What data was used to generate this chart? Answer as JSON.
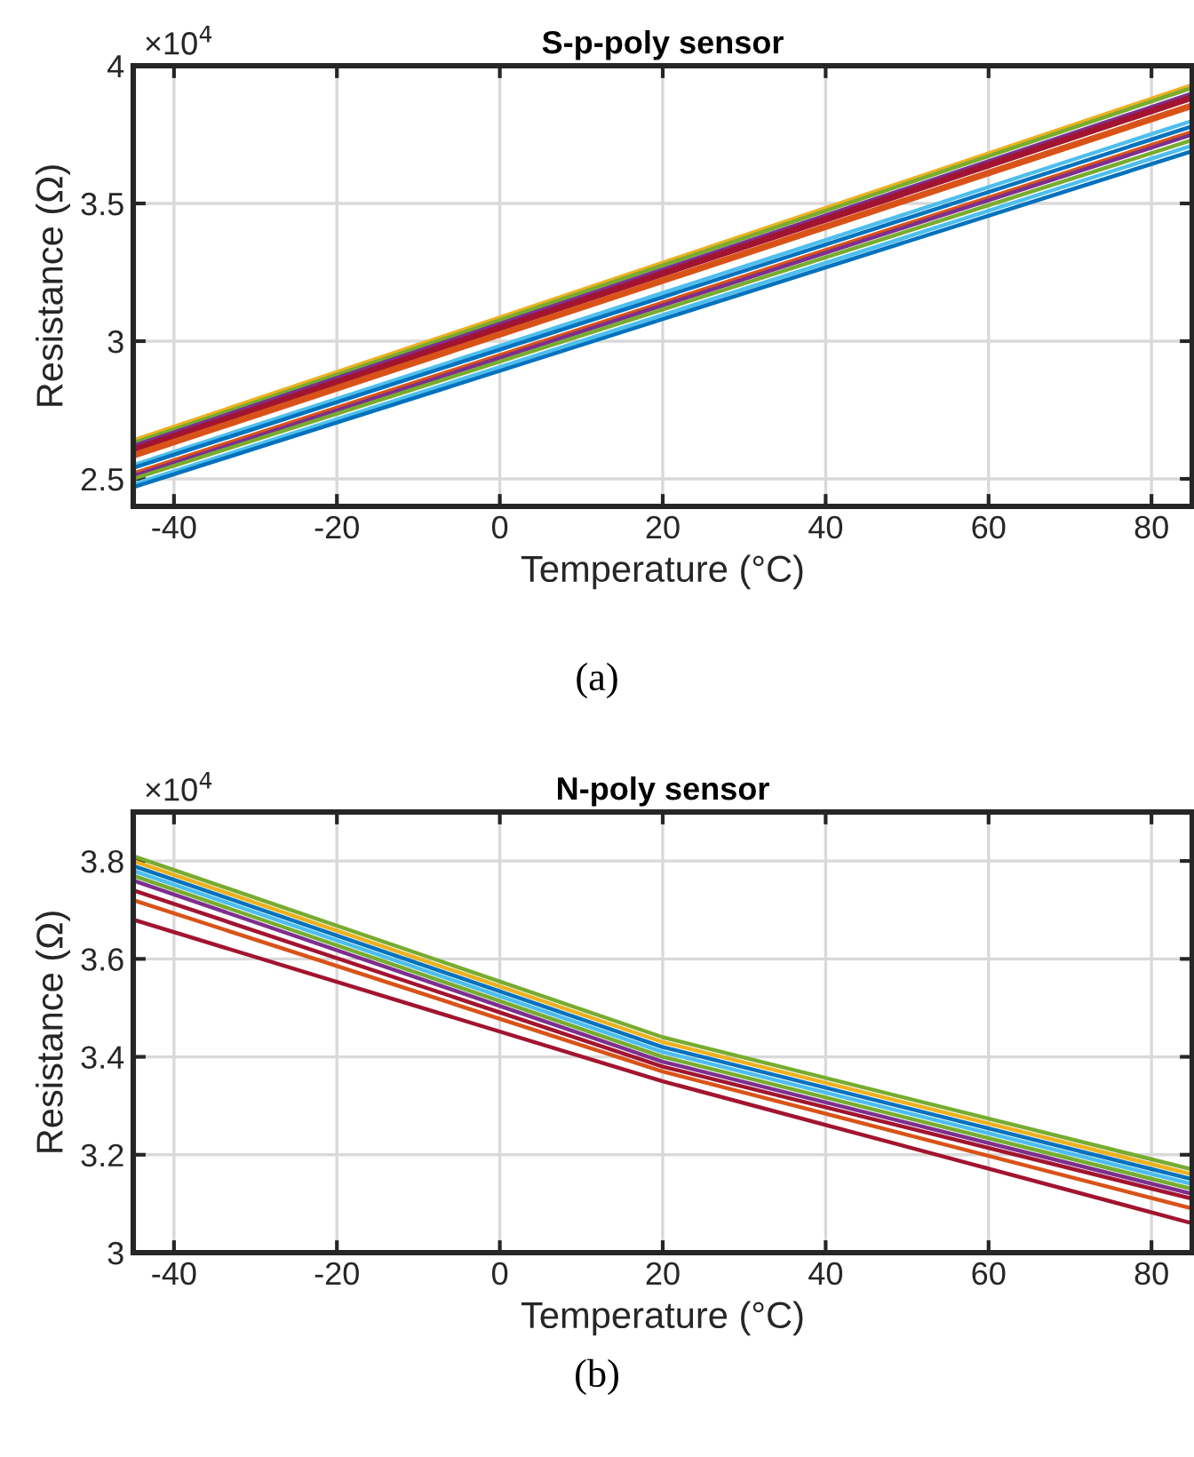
{
  "chart_data": [
    {
      "type": "line",
      "title": "S-p-poly sensor",
      "xlabel": "Temperature (°C)",
      "ylabel": "Resistance (Ω)",
      "annotations": [
        "×10$^{4}$",
        "(a)"
      ],
      "xlim": [
        -45,
        85
      ],
      "xticks": [
        -40,
        -20,
        0,
        20,
        40,
        60,
        80
      ],
      "ylim": [
        2.4,
        4
      ],
      "yticks": [
        2.5,
        3,
        3.5,
        4
      ],
      "grid": true,
      "legend": false,
      "marker": "none",
      "line_style": "solid",
      "series": [
        {
          "color": "#edb120",
          "x": [
            -45,
            85
          ],
          "values": [
            2.64,
            3.93
          ]
        },
        {
          "color": "#77ac30",
          "x": [
            -45,
            85
          ],
          "values": [
            2.63,
            3.92
          ]
        },
        {
          "color": "#7e2f8e",
          "x": [
            -45,
            85
          ],
          "values": [
            2.62,
            3.9
          ]
        },
        {
          "color": "#a2142f",
          "x": [
            -45,
            85
          ],
          "values": [
            2.61,
            3.89
          ]
        },
        {
          "color": "#a2142f",
          "x": [
            -45,
            85
          ],
          "values": [
            2.6,
            3.88
          ]
        },
        {
          "color": "#d95319",
          "x": [
            -45,
            85
          ],
          "values": [
            2.59,
            3.86
          ]
        },
        {
          "color": "#d95319",
          "x": [
            -45,
            85
          ],
          "values": [
            2.58,
            3.85
          ]
        },
        {
          "color": "#4dbeee",
          "x": [
            -45,
            85
          ],
          "values": [
            2.55,
            3.8
          ]
        },
        {
          "color": "#0072bd",
          "x": [
            -45,
            85
          ],
          "values": [
            2.54,
            3.78
          ]
        },
        {
          "color": "#d95319",
          "x": [
            -45,
            85
          ],
          "values": [
            2.52,
            3.76
          ]
        },
        {
          "color": "#7e2f8e",
          "x": [
            -45,
            85
          ],
          "values": [
            2.51,
            3.75
          ]
        },
        {
          "color": "#77ac30",
          "x": [
            -45,
            85
          ],
          "values": [
            2.5,
            3.73
          ]
        },
        {
          "color": "#4dbeee",
          "x": [
            -45,
            85
          ],
          "values": [
            2.48,
            3.71
          ]
        },
        {
          "color": "#0072bd",
          "x": [
            -45,
            85
          ],
          "values": [
            2.47,
            3.69
          ]
        }
      ]
    },
    {
      "type": "line",
      "title": "N-poly sensor",
      "xlabel": "Temperature (°C)",
      "ylabel": "Resistance (Ω)",
      "annotations": [
        "×10$^{4}$",
        "(b)"
      ],
      "xlim": [
        -45,
        85
      ],
      "xticks": [
        -40,
        -20,
        0,
        20,
        40,
        60,
        80
      ],
      "ylim": [
        3,
        3.9
      ],
      "yticks": [
        3,
        3.2,
        3.4,
        3.6,
        3.8
      ],
      "grid": true,
      "legend": false,
      "marker": "none",
      "line_style": "solid",
      "series": [
        {
          "color": "#77ac30",
          "x": [
            -45,
            20,
            85
          ],
          "values": [
            3.81,
            3.44,
            3.17
          ]
        },
        {
          "color": "#edb120",
          "x": [
            -45,
            20,
            85
          ],
          "values": [
            3.8,
            3.43,
            3.16
          ]
        },
        {
          "color": "#0072bd",
          "x": [
            -45,
            20,
            85
          ],
          "values": [
            3.79,
            3.42,
            3.15
          ]
        },
        {
          "color": "#4dbeee",
          "x": [
            -45,
            20,
            85
          ],
          "values": [
            3.78,
            3.41,
            3.14
          ]
        },
        {
          "color": "#77ac30",
          "x": [
            -45,
            20,
            85
          ],
          "values": [
            3.77,
            3.4,
            3.13
          ]
        },
        {
          "color": "#7e2f8e",
          "x": [
            -45,
            20,
            85
          ],
          "values": [
            3.76,
            3.39,
            3.12
          ]
        },
        {
          "color": "#a2142f",
          "x": [
            -45,
            20,
            85
          ],
          "values": [
            3.74,
            3.38,
            3.11
          ]
        },
        {
          "color": "#d95319",
          "x": [
            -45,
            20,
            85
          ],
          "values": [
            3.72,
            3.37,
            3.09
          ]
        },
        {
          "color": "#a2142f",
          "x": [
            -45,
            20,
            85
          ],
          "values": [
            3.68,
            3.35,
            3.06
          ]
        }
      ]
    }
  ]
}
